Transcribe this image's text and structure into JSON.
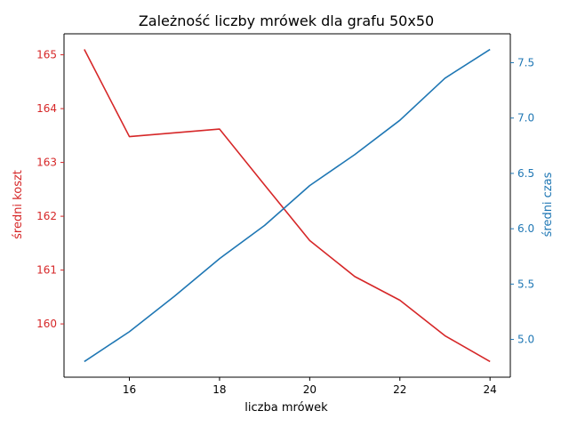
{
  "chart_data": {
    "type": "line",
    "title": "Zależność liczby mrówek dla grafu 50x50",
    "xlabel": "liczba mrówek",
    "x": [
      15,
      16,
      17,
      18,
      19,
      20,
      21,
      22,
      23,
      24
    ],
    "xlim": [
      14.55,
      24.45
    ],
    "xticks": [
      16,
      18,
      20,
      22,
      24
    ],
    "grid": false,
    "series": [
      {
        "name": "średni koszt",
        "axis": "left",
        "color": "#d62728",
        "values": [
          165.1,
          163.48,
          163.55,
          163.62,
          162.58,
          161.55,
          160.88,
          160.44,
          159.78,
          159.3
        ]
      },
      {
        "name": "średni czas",
        "axis": "right",
        "color": "#1f77b4",
        "values": [
          4.8,
          5.07,
          5.39,
          5.73,
          6.03,
          6.39,
          6.67,
          6.98,
          7.36,
          7.62
        ]
      }
    ],
    "y_left": {
      "label": "średni koszt",
      "color": "#d62728",
      "lim": [
        159.01,
        165.39
      ],
      "ticks": [
        160,
        161,
        162,
        163,
        164,
        165
      ]
    },
    "y_right": {
      "label": "średni czas",
      "color": "#1f77b4",
      "lim": [
        4.659,
        7.761
      ],
      "ticks": [
        5.0,
        5.5,
        6.0,
        6.5,
        7.0,
        7.5
      ]
    }
  }
}
